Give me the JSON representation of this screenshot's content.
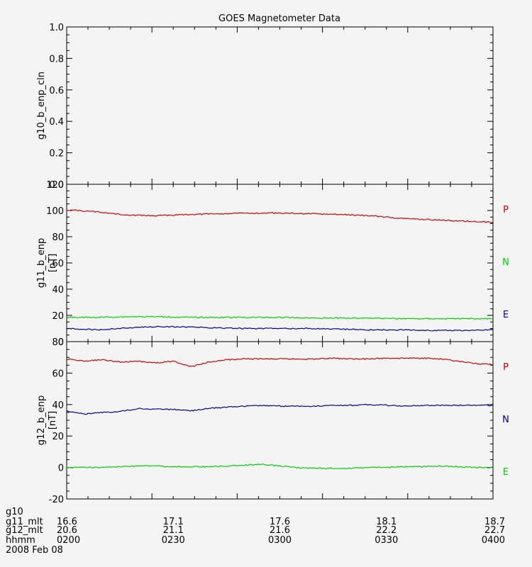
{
  "chart_data": [
    {
      "type": "line",
      "title": "GOES Magnetometer Data",
      "ylabel": "g10_b_enp_cln",
      "yunit": "",
      "ylim": [
        0,
        1
      ],
      "yticks": [
        "0.0",
        "0.2",
        "0.4",
        "0.6",
        "0.8",
        "1.0"
      ],
      "series": []
    },
    {
      "type": "line",
      "ylabel": "g11_b_enp",
      "yunit": "[nT]",
      "ylim": [
        0,
        120
      ],
      "yticks": [
        "0",
        "20",
        "40",
        "60",
        "80",
        "100",
        "120"
      ],
      "series": [
        {
          "name": "P",
          "color": "#cc0000",
          "values": [
            100.5,
            99,
            96.5,
            96,
            97,
            97.5,
            98,
            98,
            97.5,
            97,
            96,
            94,
            93,
            92,
            91
          ]
        },
        {
          "name": "N",
          "color": "#00cc00",
          "values": [
            18.5,
            18.5,
            19,
            19,
            18.5,
            18.5,
            18.5,
            18.5,
            18,
            18,
            18,
            17.5,
            17.5,
            17.5,
            17.5
          ]
        },
        {
          "name": "E",
          "color": "#000099",
          "values": [
            10,
            9,
            10.5,
            11.5,
            11,
            10.5,
            10,
            10,
            10,
            9.5,
            9,
            9,
            8.5,
            8.5,
            9
          ]
        }
      ]
    },
    {
      "type": "line",
      "ylabel": "g12_b_enp",
      "yunit": "[nT]",
      "ylim": [
        -20,
        80
      ],
      "yticks": [
        "-20",
        "0",
        "20",
        "40",
        "60",
        "80"
      ],
      "series": [
        {
          "name": "P",
          "color": "#cc0000",
          "values": [
            69,
            67.5,
            68.5,
            67,
            67.5,
            66.5,
            67.5,
            64,
            67,
            68.5,
            69,
            69,
            69,
            69,
            69,
            69.5,
            69,
            69,
            69.5,
            69.5,
            69.5,
            69,
            67.5,
            66,
            65.5
          ]
        },
        {
          "name": "N",
          "color": "#000099",
          "values": [
            36,
            34,
            35,
            35.5,
            37.5,
            37,
            37,
            36,
            37.5,
            38.5,
            39,
            39.5,
            39,
            39,
            39,
            39.5,
            39.5,
            40,
            39.5,
            39,
            39.5,
            39.5,
            39.5,
            39.5,
            39.5
          ]
        },
        {
          "name": "E",
          "color": "#00cc00",
          "values": [
            0,
            0,
            0,
            0.5,
            1,
            1,
            0.5,
            0.5,
            0.5,
            1,
            1.5,
            2,
            1,
            0,
            -0.5,
            -0.5,
            -0.5,
            0,
            0,
            0.5,
            0.5,
            1,
            0.5,
            0,
            0
          ]
        }
      ]
    }
  ],
  "time_axis": {
    "row_labels": [
      "g10",
      "g11_mlt",
      "g12_mlt",
      "hhmm",
      "2008 Feb 08"
    ],
    "columns": [
      {
        "g11_mlt": "16.6",
        "g12_mlt": "20.6",
        "hhmm": "0200"
      },
      {
        "g11_mlt": "17.1",
        "g12_mlt": "21.1",
        "hhmm": "0230"
      },
      {
        "g11_mlt": "17.6",
        "g12_mlt": "21.6",
        "hhmm": "0300"
      },
      {
        "g11_mlt": "18.1",
        "g12_mlt": "22.2",
        "hhmm": "0330"
      },
      {
        "g11_mlt": "18.7",
        "g12_mlt": "22.7",
        "hhmm": "0400"
      }
    ]
  }
}
